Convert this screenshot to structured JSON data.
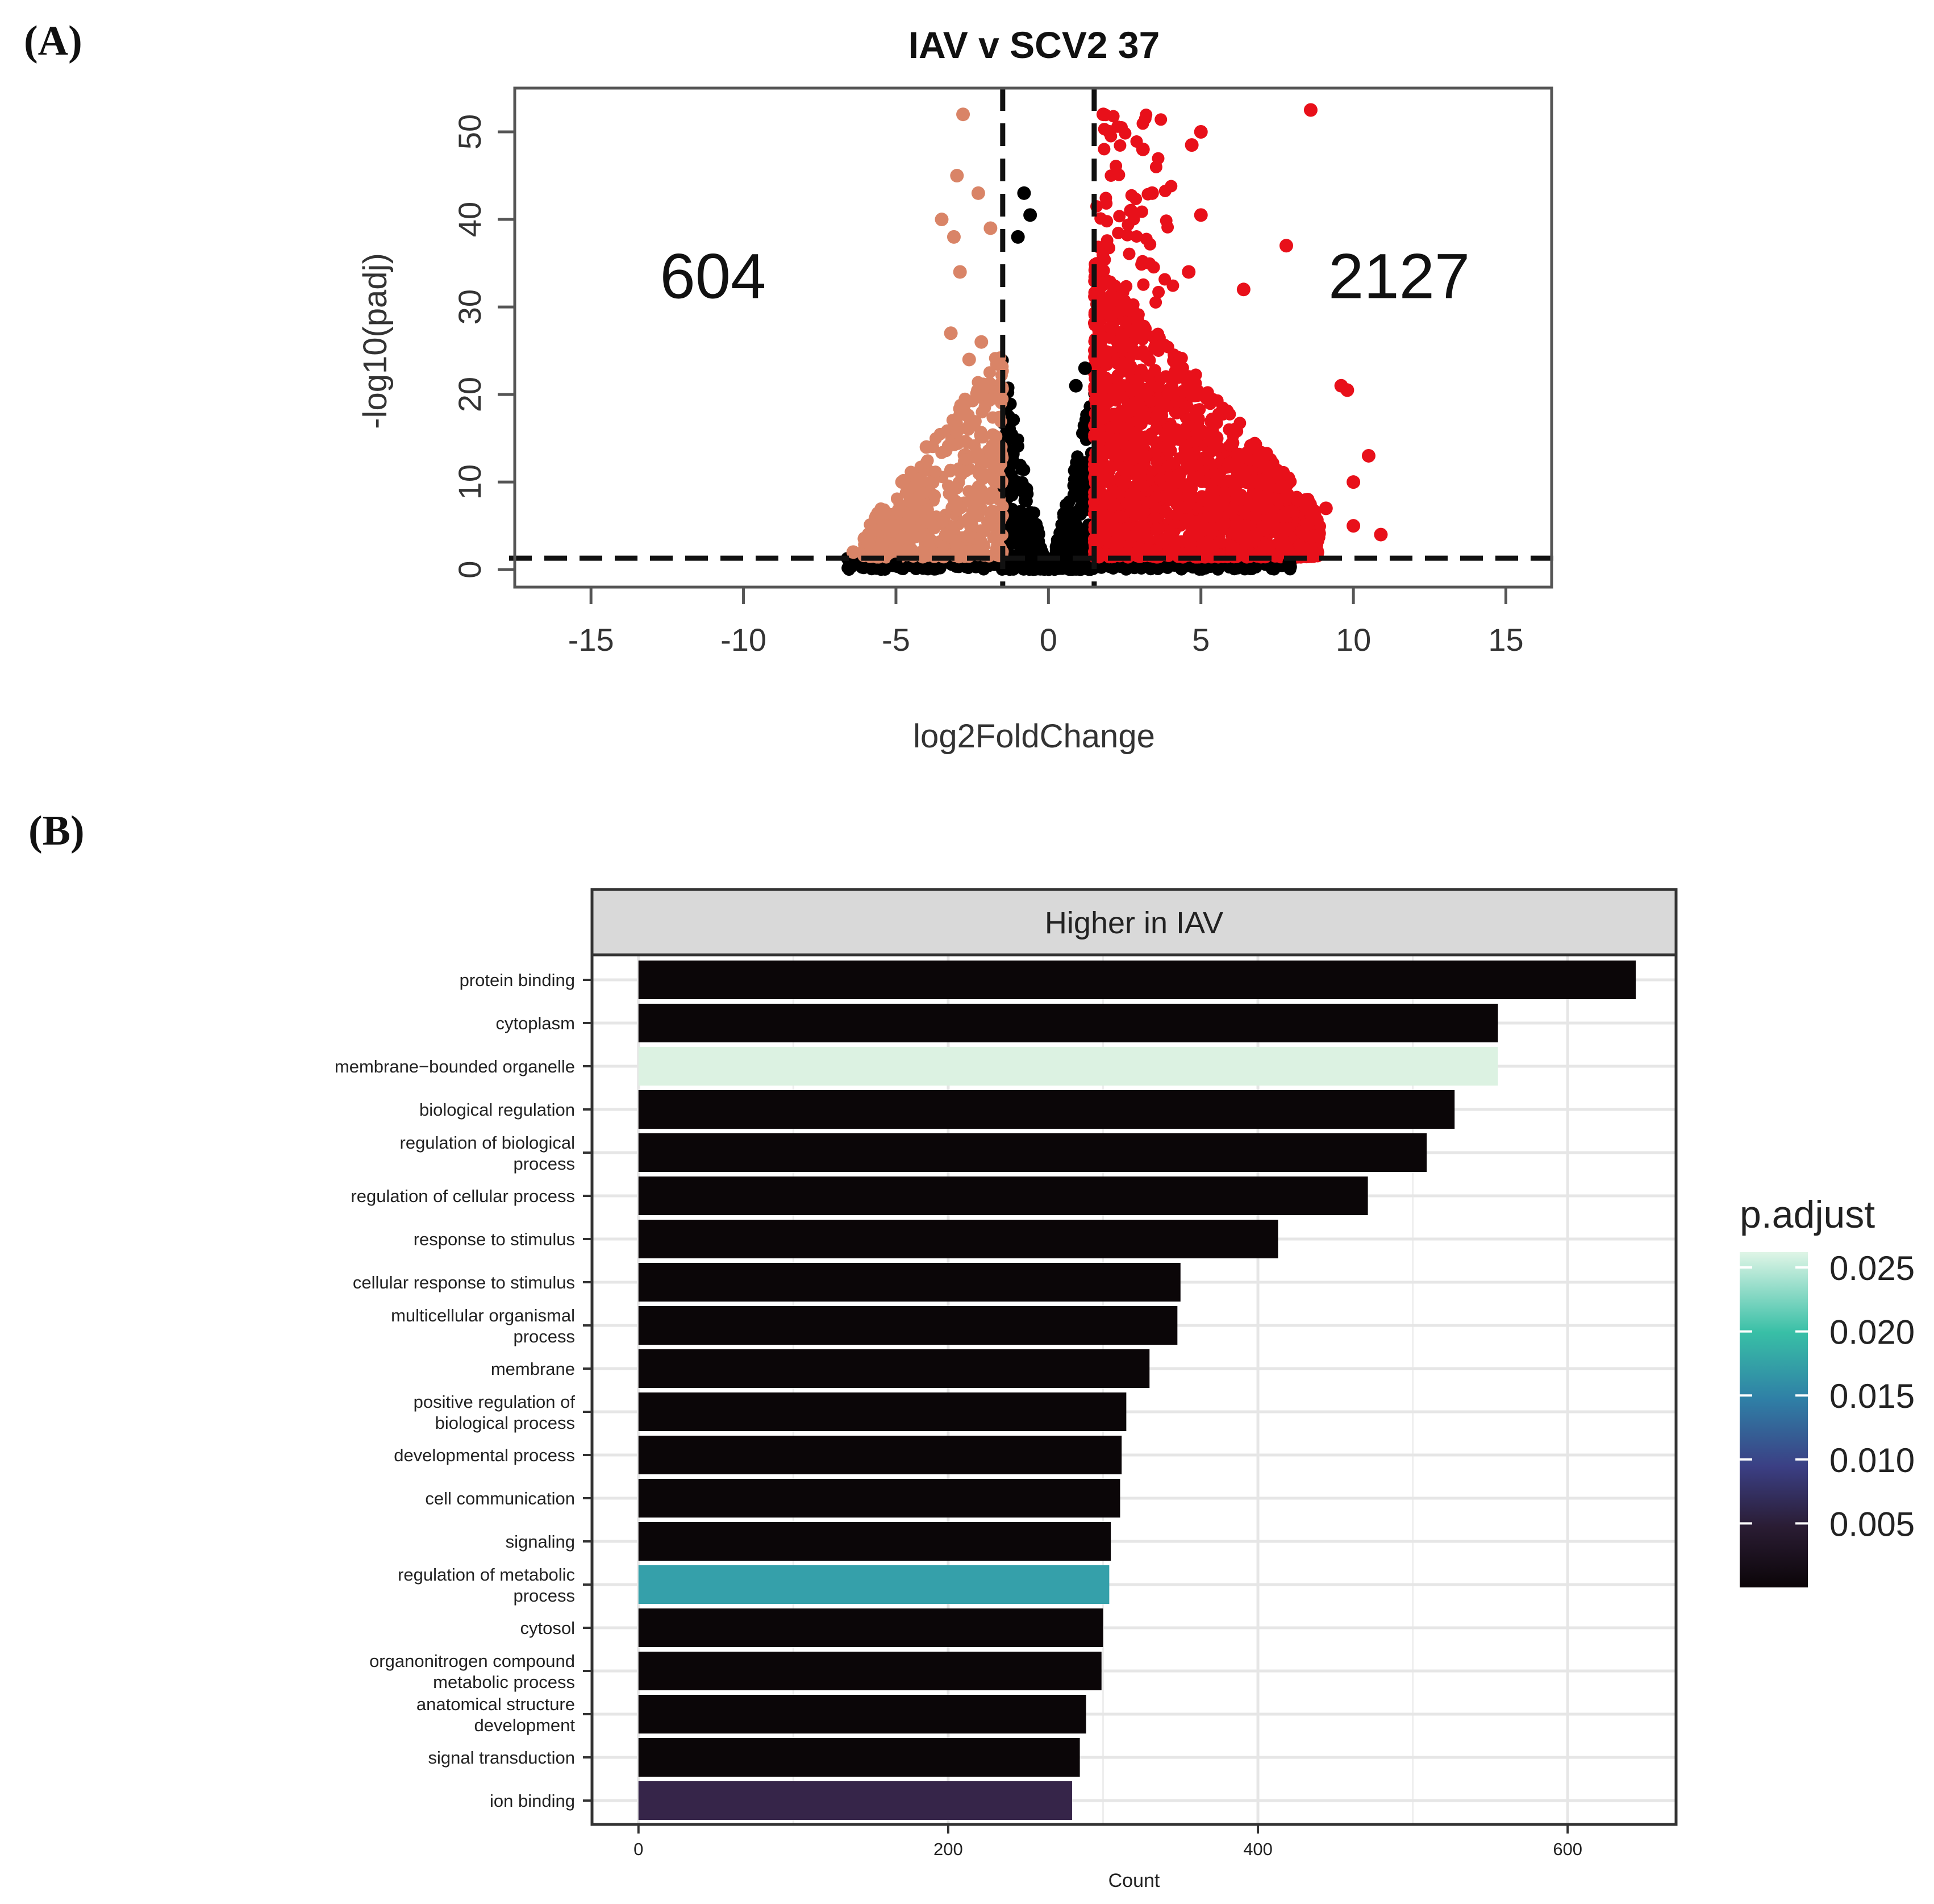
{
  "panel_a": {
    "label": "(A)"
  },
  "panel_b": {
    "label": "(B)"
  },
  "chart_data": [
    {
      "type": "scatter",
      "title": "IAV v SCV2 37",
      "xlabel": "log2FoldChange",
      "ylabel": "-log10(padj)",
      "xlim": [
        -17.5,
        16.5
      ],
      "ylim": [
        -2,
        55
      ],
      "xticks": [
        -15,
        -10,
        -5,
        0,
        5,
        10,
        15
      ],
      "yticks": [
        0,
        10,
        20,
        30,
        40,
        50
      ],
      "threshold_lines": {
        "x": [
          -1.5,
          1.5
        ],
        "y": [
          1.3
        ]
      },
      "annotations": [
        {
          "text": "604",
          "x": -11,
          "y": 31
        },
        {
          "text": "2127",
          "x": 11.5,
          "y": 31
        }
      ],
      "colors": {
        "down": "#d98467",
        "up": "#e8101a",
        "ns": "#000000"
      },
      "highlight_points": {
        "down": [
          [
            -2.8,
            52
          ],
          [
            -3.0,
            45
          ],
          [
            -2.3,
            43
          ],
          [
            -3.5,
            40
          ],
          [
            -3.1,
            38
          ],
          [
            -2.9,
            34
          ],
          [
            -1.9,
            39
          ],
          [
            -3.2,
            27
          ],
          [
            -2.2,
            26
          ],
          [
            -2.6,
            24
          ],
          [
            -4.0,
            14
          ],
          [
            -4.8,
            10
          ],
          [
            -5.9,
            3
          ],
          [
            -6.4,
            2
          ],
          [
            -5.1,
            5
          ]
        ],
        "up": [
          [
            8.6,
            52.5
          ],
          [
            5.0,
            50
          ],
          [
            4.7,
            48.5
          ],
          [
            1.8,
            52
          ],
          [
            2.0,
            50
          ],
          [
            3.1,
            48
          ],
          [
            5.0,
            40.5
          ],
          [
            7.8,
            37
          ],
          [
            4.6,
            34
          ],
          [
            6.4,
            32
          ],
          [
            9.6,
            21
          ],
          [
            9.8,
            20.5
          ],
          [
            10.5,
            13
          ],
          [
            10.0,
            10
          ],
          [
            10.9,
            4
          ],
          [
            10.0,
            5
          ],
          [
            8.5,
            8
          ],
          [
            9.1,
            7
          ],
          [
            3.4,
            43
          ],
          [
            2.7,
            41
          ]
        ],
        "ns": [
          [
            -0.8,
            43
          ],
          [
            -1.0,
            38
          ],
          [
            -0.6,
            40.5
          ],
          [
            0.9,
            21
          ],
          [
            1.2,
            23
          ],
          [
            -6.5,
            0.5
          ],
          [
            -5.0,
            0.6
          ],
          [
            7.9,
            0.8
          ]
        ]
      }
    },
    {
      "type": "bar",
      "orientation": "horizontal",
      "facet_title": "Higher in IAV",
      "xlabel": "Count",
      "xticks": [
        0,
        200,
        400,
        600
      ],
      "xlim": [
        -30,
        670
      ],
      "legend_title": "p.adjust",
      "legend_ticks": [
        "0.025",
        "0.020",
        "0.015",
        "0.010",
        "0.005"
      ],
      "legend_tick_values": [
        0.025,
        0.02,
        0.015,
        0.01,
        0.005
      ],
      "legend_range": [
        0.0,
        0.0262
      ],
      "categories": [
        "protein binding",
        "cytoplasm",
        "membrane−bounded organelle",
        "biological regulation",
        "regulation of biological\nprocess",
        "regulation of cellular process",
        "response to stimulus",
        "cellular response to stimulus",
        "multicellular organismal\nprocess",
        "membrane",
        "positive regulation of\nbiological process",
        "developmental process",
        "cell communication",
        "signaling",
        "regulation of metabolic\nprocess",
        "cytosol",
        "organonitrogen compound\nmetabolic process",
        "anatomical structure\ndevelopment",
        "signal transduction",
        "ion binding"
      ],
      "values": [
        644,
        555,
        555,
        527,
        509,
        471,
        413,
        350,
        348,
        330,
        315,
        312,
        311,
        305,
        304,
        300,
        299,
        289,
        285,
        280
      ],
      "colors": [
        "#0b0608",
        "#0b0608",
        "#dcf2e2",
        "#0b0608",
        "#0b0608",
        "#0b0608",
        "#0b0608",
        "#0b0608",
        "#0b0608",
        "#0b0608",
        "#0b0608",
        "#0b0608",
        "#0b0608",
        "#0b0608",
        "#35a0aa",
        "#0b0608",
        "#0b0608",
        "#0b0608",
        "#0b0608",
        "#362549"
      ]
    }
  ]
}
